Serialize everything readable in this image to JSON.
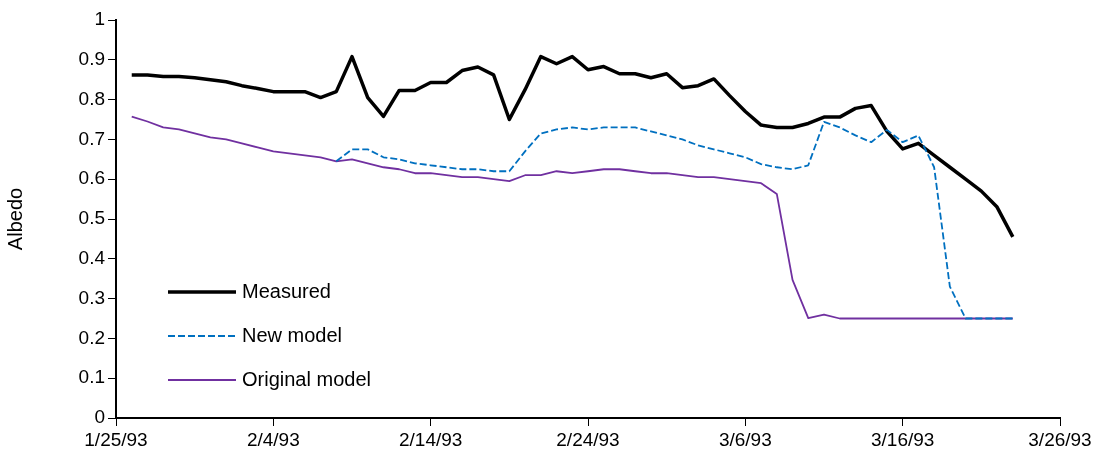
{
  "chart_data": {
    "type": "line",
    "ylabel": "Albedo",
    "x": [
      "1993-01-26",
      "1993-01-27",
      "1993-01-28",
      "1993-01-29",
      "1993-01-30",
      "1993-01-31",
      "1993-02-01",
      "1993-02-02",
      "1993-02-03",
      "1993-02-04",
      "1993-02-05",
      "1993-02-06",
      "1993-02-07",
      "1993-02-08",
      "1993-02-09",
      "1993-02-10",
      "1993-02-11",
      "1993-02-12",
      "1993-02-13",
      "1993-02-14",
      "1993-02-15",
      "1993-02-16",
      "1993-02-17",
      "1993-02-18",
      "1993-02-19",
      "1993-02-20",
      "1993-02-21",
      "1993-02-22",
      "1993-02-23",
      "1993-02-24",
      "1993-02-25",
      "1993-02-26",
      "1993-02-27",
      "1993-02-28",
      "1993-03-01",
      "1993-03-02",
      "1993-03-03",
      "1993-03-04",
      "1993-03-05",
      "1993-03-06",
      "1993-03-07",
      "1993-03-08",
      "1993-03-09",
      "1993-03-10",
      "1993-03-11",
      "1993-03-12",
      "1993-03-13",
      "1993-03-14",
      "1993-03-15",
      "1993-03-16",
      "1993-03-17",
      "1993-03-18",
      "1993-03-19",
      "1993-03-20",
      "1993-03-21",
      "1993-03-22",
      "1993-03-23"
    ],
    "series": [
      {
        "name": "Measured",
        "color": "#000000",
        "line_style": "solid",
        "values": [
          0.862,
          0.862,
          0.858,
          0.858,
          0.855,
          0.85,
          0.845,
          0.835,
          0.828,
          0.82,
          0.82,
          0.82,
          0.805,
          0.82,
          0.908,
          0.805,
          0.758,
          0.823,
          0.823,
          0.843,
          0.843,
          0.873,
          0.882,
          0.862,
          0.75,
          0.825,
          0.908,
          0.89,
          0.908,
          0.875,
          0.883,
          0.865,
          0.865,
          0.855,
          0.865,
          0.83,
          0.835,
          0.852,
          0.81,
          0.77,
          0.736,
          0.73,
          0.73,
          0.74,
          0.756,
          0.756,
          0.778,
          0.785,
          0.72,
          0.676,
          0.69,
          0.66,
          0.63,
          0.6,
          0.57,
          0.53,
          0.455
        ]
      },
      {
        "name": "New model",
        "color": "#0070c0",
        "line_style": "dashed",
        "values": [
          null,
          null,
          null,
          null,
          null,
          null,
          null,
          null,
          null,
          null,
          null,
          null,
          null,
          0.645,
          0.675,
          0.675,
          0.655,
          0.65,
          0.64,
          0.635,
          0.63,
          0.625,
          0.625,
          0.62,
          0.62,
          0.67,
          0.715,
          0.725,
          0.73,
          0.725,
          0.73,
          0.73,
          0.73,
          0.72,
          0.71,
          0.7,
          0.685,
          0.675,
          0.665,
          0.655,
          0.638,
          0.63,
          0.625,
          0.635,
          0.744,
          0.73,
          0.71,
          0.693,
          0.724,
          0.693,
          0.71,
          0.63,
          0.33,
          0.25,
          0.25,
          0.25,
          0.25
        ]
      },
      {
        "name": "Original model",
        "color": "#7030a0",
        "line_style": "solid",
        "values": [
          0.757,
          0.745,
          0.73,
          0.725,
          0.715,
          0.705,
          0.7,
          0.69,
          0.68,
          0.67,
          0.665,
          0.66,
          0.655,
          0.645,
          0.65,
          0.64,
          0.63,
          0.625,
          0.615,
          0.615,
          0.61,
          0.605,
          0.605,
          0.6,
          0.595,
          0.61,
          0.61,
          0.62,
          0.615,
          0.62,
          0.625,
          0.625,
          0.62,
          0.615,
          0.615,
          0.61,
          0.605,
          0.605,
          0.6,
          0.595,
          0.59,
          0.563,
          0.347,
          0.251,
          0.26,
          0.25,
          0.25,
          0.25,
          0.25,
          0.25,
          0.25,
          0.25,
          0.25,
          0.25,
          0.25,
          0.25,
          0.25
        ]
      }
    ],
    "xlim": [
      "1993-01-25",
      "1993-03-26"
    ],
    "xticks": [
      {
        "value": "1993-01-25",
        "label": "1/25/93"
      },
      {
        "value": "1993-02-04",
        "label": "2/4/93"
      },
      {
        "value": "1993-02-14",
        "label": "2/14/93"
      },
      {
        "value": "1993-02-24",
        "label": "2/24/93"
      },
      {
        "value": "1993-03-06",
        "label": "3/6/93"
      },
      {
        "value": "1993-03-16",
        "label": "3/16/93"
      },
      {
        "value": "1993-03-26",
        "label": "3/26/93"
      }
    ],
    "ylim": [
      0,
      1
    ],
    "yticks": [
      0,
      0.1,
      0.2,
      0.3,
      0.4,
      0.5,
      0.6,
      0.7,
      0.8,
      0.9,
      1
    ],
    "grid": false,
    "legend": "bottom left",
    "marker": "none"
  }
}
